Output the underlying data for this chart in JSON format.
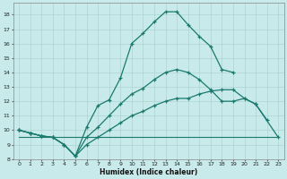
{
  "title": "",
  "xlabel": "Humidex (Indice chaleur)",
  "bg_color": "#c8eaea",
  "grid_color": "#aed4d4",
  "line_color": "#1a7a6e",
  "xlim": [
    -0.5,
    23.5
  ],
  "ylim": [
    8,
    18.8
  ],
  "xticks": [
    0,
    1,
    2,
    3,
    4,
    5,
    6,
    7,
    8,
    9,
    10,
    11,
    12,
    13,
    14,
    15,
    16,
    17,
    18,
    19,
    20,
    21,
    22,
    23
  ],
  "yticks": [
    8,
    9,
    10,
    11,
    12,
    13,
    14,
    15,
    16,
    17,
    18
  ],
  "line_max": {
    "x": [
      0,
      1,
      2,
      3,
      4,
      5,
      6,
      7,
      8,
      9,
      10,
      11,
      12,
      13,
      14,
      15,
      16,
      17,
      18,
      19
    ],
    "y": [
      10,
      9.8,
      9.6,
      9.5,
      9.0,
      8.2,
      10.2,
      11.7,
      12.1,
      13.6,
      16.0,
      16.7,
      17.5,
      18.2,
      18.2,
      17.3,
      16.5,
      15.8,
      14.2,
      14.0
    ]
  },
  "line_mid": {
    "x": [
      0,
      1,
      2,
      3,
      4,
      5,
      6,
      7,
      8,
      9,
      10,
      11,
      12,
      13,
      14,
      15,
      16,
      17,
      18,
      19,
      20,
      21,
      22
    ],
    "y": [
      10,
      9.8,
      9.6,
      9.5,
      9.0,
      8.2,
      9.5,
      10.2,
      11.0,
      11.8,
      12.5,
      12.9,
      13.5,
      14.0,
      14.2,
      14.0,
      13.5,
      12.8,
      12.0,
      12.0,
      12.2,
      11.8,
      10.7
    ]
  },
  "line_low": {
    "x": [
      0,
      1,
      2,
      3,
      4,
      5,
      6,
      7,
      8,
      9,
      10,
      11,
      12,
      13,
      14,
      15,
      16,
      17,
      18,
      19,
      20,
      21,
      23
    ],
    "y": [
      10,
      9.8,
      9.6,
      9.5,
      9.0,
      8.2,
      9.0,
      9.5,
      10.0,
      10.5,
      11.0,
      11.3,
      11.7,
      12.0,
      12.2,
      12.2,
      12.5,
      12.7,
      12.8,
      12.8,
      12.2,
      11.8,
      9.5
    ]
  },
  "line_min": {
    "x": [
      0,
      23
    ],
    "y": [
      9.5,
      9.5
    ]
  }
}
